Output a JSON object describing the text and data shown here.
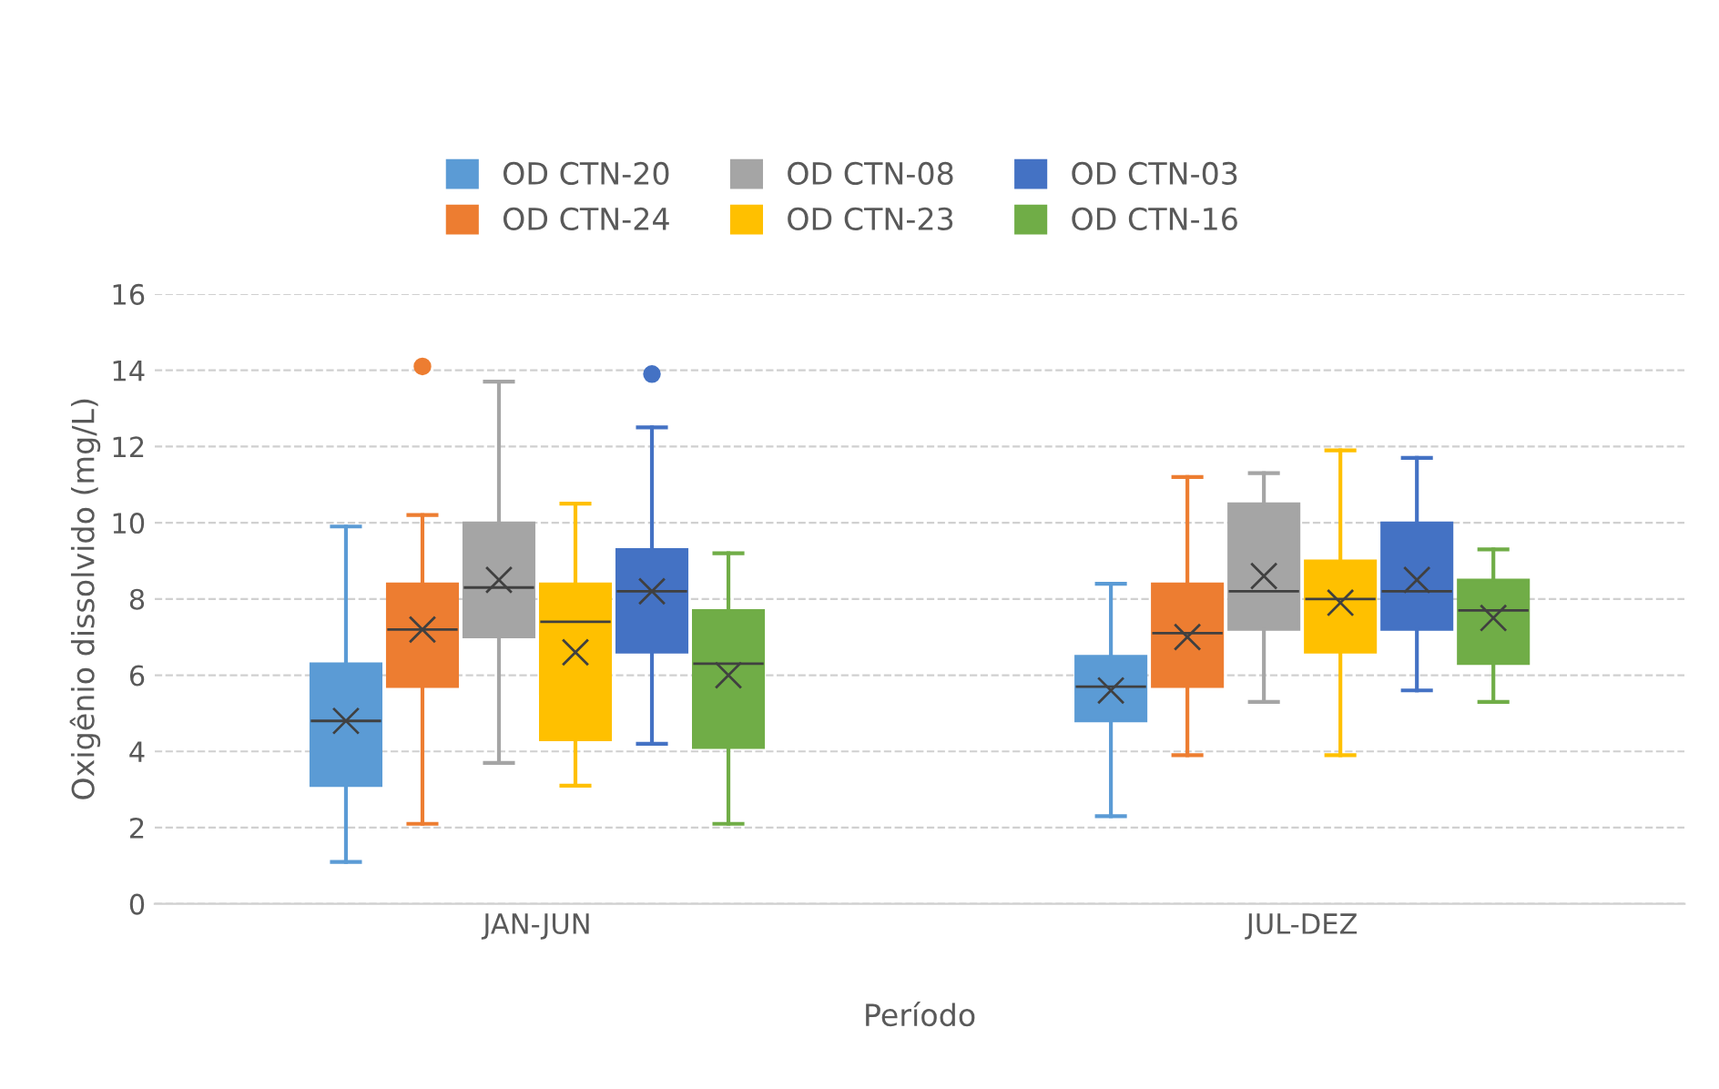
{
  "chart_data": {
    "type": "box",
    "xlabel": "Período",
    "ylabel": "Oxigênio dissolvido (mg/L)",
    "categories": [
      "JAN-JUN",
      "JUL-DEZ"
    ],
    "ylim": [
      0,
      16
    ],
    "yticks": [
      0,
      2,
      4,
      6,
      8,
      10,
      12,
      14,
      16
    ],
    "grid": "y",
    "legend": "top",
    "marker": "cross",
    "series": [
      {
        "name": "OD CTN-20",
        "color": "#5b9bd5",
        "boxes": [
          {
            "low": 1.1,
            "q1": 3.1,
            "median": 4.8,
            "q3": 6.3,
            "high": 9.9,
            "mean": 4.8
          },
          {
            "low": 2.3,
            "q1": 4.8,
            "median": 5.7,
            "q3": 6.5,
            "high": 8.4,
            "mean": 5.6
          }
        ]
      },
      {
        "name": "OD CTN-24",
        "color": "#ed7d31",
        "boxes": [
          {
            "low": 2.1,
            "q1": 5.7,
            "median": 7.2,
            "q3": 8.4,
            "high": 10.2,
            "mean": 7.2,
            "outliers": [
              14.1
            ]
          },
          {
            "low": 3.9,
            "q1": 5.7,
            "median": 7.1,
            "q3": 8.4,
            "high": 11.2,
            "mean": 7.0
          }
        ]
      },
      {
        "name": "OD CTN-08",
        "color": "#a5a5a5",
        "boxes": [
          {
            "low": 3.7,
            "q1": 7.0,
            "median": 8.3,
            "q3": 10.0,
            "high": 13.7,
            "mean": 8.5
          },
          {
            "low": 5.3,
            "q1": 7.2,
            "median": 8.2,
            "q3": 10.5,
            "high": 11.3,
            "mean": 8.6
          }
        ]
      },
      {
        "name": "OD CTN-23",
        "color": "#ffc000",
        "boxes": [
          {
            "low": 3.1,
            "q1": 4.3,
            "median": 7.4,
            "q3": 8.4,
            "high": 10.5,
            "mean": 6.6
          },
          {
            "low": 3.9,
            "q1": 6.6,
            "median": 8.0,
            "q3": 9.0,
            "high": 11.9,
            "mean": 7.9
          }
        ]
      },
      {
        "name": "OD CTN-03",
        "color": "#4472c4",
        "boxes": [
          {
            "low": 4.2,
            "q1": 6.6,
            "median": 8.2,
            "q3": 9.3,
            "high": 12.5,
            "mean": 8.2,
            "outliers": [
              13.9
            ]
          },
          {
            "low": 5.6,
            "q1": 7.2,
            "median": 8.2,
            "q3": 10.0,
            "high": 11.7,
            "mean": 8.5
          }
        ]
      },
      {
        "name": "OD CTN-16",
        "color": "#70ad47",
        "boxes": [
          {
            "low": 2.1,
            "q1": 4.1,
            "median": 6.3,
            "q3": 7.7,
            "high": 9.2,
            "mean": 6.0
          },
          {
            "low": 5.3,
            "q1": 6.3,
            "median": 7.7,
            "q3": 8.5,
            "high": 9.3,
            "mean": 7.5
          }
        ]
      }
    ]
  }
}
